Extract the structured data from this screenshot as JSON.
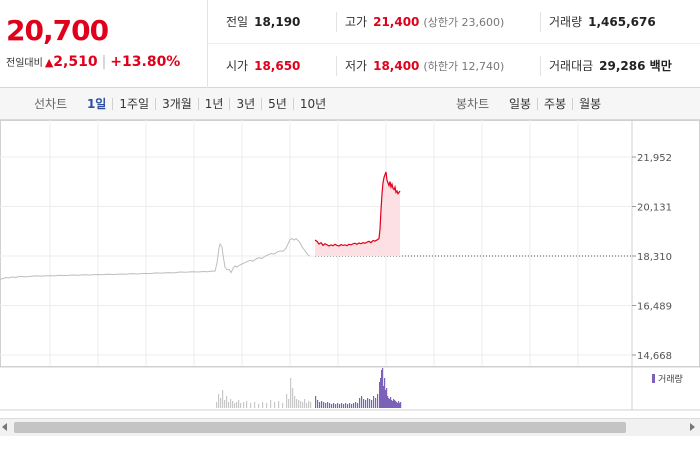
{
  "summary": {
    "price": "20,700",
    "change_label": "전일대비",
    "change_symbol": "▲",
    "change_amount": "2,510",
    "change_percent": "+13.80%",
    "row1": {
      "prev_close_label": "전일",
      "prev_close": "18,190",
      "high_label": "고가",
      "high": "21,400",
      "upper_limit_label": "(상한가 23,600)",
      "volume_label": "거래량",
      "volume": "1,465,676"
    },
    "row2": {
      "open_label": "시가",
      "open": "18,650",
      "low_label": "저가",
      "low": "18,400",
      "lower_limit_label": "(하한가 12,740)",
      "turnover_label": "거래대금",
      "turnover": "29,286 백만"
    }
  },
  "toolbar": {
    "line_chart_label": "선차트",
    "periods": [
      "1일",
      "1주일",
      "3개월",
      "1년",
      "3년",
      "5년",
      "10년"
    ],
    "active_period": "1일",
    "candle_chart_label": "봉차트",
    "candles": [
      "일봉",
      "주봉",
      "월봉"
    ]
  },
  "chart_data": {
    "type": "line",
    "y_ticks": [
      "21,952",
      "20,131",
      "18,310",
      "16,489",
      "14,668"
    ],
    "ylim": [
      14668,
      21952
    ],
    "previous_close": 18190,
    "volume_legend": "거래량",
    "colors": {
      "up": "#e1001b",
      "pre_market": "#bdbdbd",
      "volume_pre": "#c8c8c8",
      "volume_main": "#7b61b8"
    },
    "pre_market": [
      [
        0,
        17450
      ],
      [
        3,
        17480
      ],
      [
        6,
        17520
      ],
      [
        9,
        17500
      ],
      [
        12,
        17540
      ],
      [
        15,
        17520
      ],
      [
        20,
        17560
      ],
      [
        25,
        17540
      ],
      [
        30,
        17560
      ],
      [
        36,
        17580
      ],
      [
        42,
        17570
      ],
      [
        48,
        17590
      ],
      [
        54,
        17580
      ],
      [
        60,
        17600
      ],
      [
        66,
        17590
      ],
      [
        72,
        17610
      ],
      [
        78,
        17600
      ],
      [
        84,
        17620
      ],
      [
        90,
        17610
      ],
      [
        96,
        17630
      ],
      [
        102,
        17620
      ],
      [
        108,
        17640
      ],
      [
        114,
        17630
      ],
      [
        120,
        17650
      ],
      [
        126,
        17640
      ],
      [
        132,
        17660
      ],
      [
        138,
        17650
      ],
      [
        144,
        17670
      ],
      [
        150,
        17660
      ],
      [
        156,
        17690
      ],
      [
        162,
        17680
      ],
      [
        168,
        17700
      ],
      [
        174,
        17690
      ],
      [
        180,
        17720
      ],
      [
        186,
        17710
      ],
      [
        192,
        17730
      ],
      [
        198,
        17720
      ],
      [
        204,
        17740
      ],
      [
        208,
        17730
      ],
      [
        212,
        17760
      ],
      [
        215,
        17750
      ],
      [
        217,
        18050
      ],
      [
        219,
        18600
      ],
      [
        220,
        18750
      ],
      [
        222,
        18650
      ],
      [
        223,
        18350
      ],
      [
        225,
        17900
      ],
      [
        227,
        17800
      ],
      [
        229,
        17820
      ],
      [
        231,
        17700
      ],
      [
        233,
        17850
      ],
      [
        235,
        17950
      ],
      [
        237,
        17900
      ],
      [
        239,
        17960
      ],
      [
        241,
        18000
      ],
      [
        244,
        18050
      ],
      [
        247,
        18100
      ],
      [
        250,
        18150
      ],
      [
        253,
        18120
      ],
      [
        256,
        18200
      ],
      [
        259,
        18250
      ],
      [
        262,
        18220
      ],
      [
        265,
        18300
      ],
      [
        268,
        18350
      ],
      [
        271,
        18400
      ],
      [
        274,
        18380
      ],
      [
        277,
        18450
      ],
      [
        280,
        18500
      ],
      [
        283,
        18480
      ],
      [
        286,
        18600
      ],
      [
        288,
        18750
      ],
      [
        290,
        18920
      ],
      [
        292,
        18950
      ],
      [
        294,
        18900
      ],
      [
        296,
        18950
      ],
      [
        298,
        18880
      ],
      [
        300,
        18800
      ],
      [
        302,
        18650
      ],
      [
        304,
        18550
      ],
      [
        306,
        18450
      ],
      [
        308,
        18350
      ],
      [
        310,
        18300
      ]
    ],
    "intraday": [
      [
        315,
        18900
      ],
      [
        317,
        18850
      ],
      [
        319,
        18750
      ],
      [
        321,
        18800
      ],
      [
        323,
        18700
      ],
      [
        325,
        18760
      ],
      [
        327,
        18720
      ],
      [
        329,
        18680
      ],
      [
        331,
        18720
      ],
      [
        333,
        18690
      ],
      [
        335,
        18740
      ],
      [
        337,
        18700
      ],
      [
        339,
        18680
      ],
      [
        341,
        18730
      ],
      [
        343,
        18700
      ],
      [
        345,
        18720
      ],
      [
        347,
        18690
      ],
      [
        349,
        18740
      ],
      [
        351,
        18720
      ],
      [
        353,
        18760
      ],
      [
        355,
        18780
      ],
      [
        357,
        18740
      ],
      [
        359,
        18790
      ],
      [
        361,
        18760
      ],
      [
        363,
        18800
      ],
      [
        365,
        18780
      ],
      [
        367,
        18820
      ],
      [
        369,
        18850
      ],
      [
        371,
        18800
      ],
      [
        373,
        18880
      ],
      [
        375,
        18860
      ],
      [
        377,
        18900
      ],
      [
        379,
        18950
      ],
      [
        380,
        19300
      ],
      [
        381,
        20000
      ],
      [
        382,
        20600
      ],
      [
        383,
        21000
      ],
      [
        384,
        21200
      ],
      [
        385,
        21300
      ],
      [
        386,
        21400
      ],
      [
        387,
        21100
      ],
      [
        388,
        21000
      ],
      [
        389,
        20900
      ],
      [
        390,
        21050
      ],
      [
        391,
        20850
      ],
      [
        392,
        20950
      ],
      [
        393,
        20800
      ],
      [
        394,
        20750
      ],
      [
        395,
        20850
      ],
      [
        396,
        20650
      ],
      [
        397,
        20700
      ],
      [
        398,
        20600
      ],
      [
        399,
        20650
      ],
      [
        400,
        20700
      ]
    ],
    "volume_pre": [
      [
        216,
        6
      ],
      [
        218,
        14
      ],
      [
        220,
        10
      ],
      [
        222,
        18
      ],
      [
        224,
        8
      ],
      [
        226,
        12
      ],
      [
        228,
        6
      ],
      [
        230,
        9
      ],
      [
        232,
        7
      ],
      [
        234,
        5
      ],
      [
        236,
        6
      ],
      [
        238,
        8
      ],
      [
        240,
        5
      ],
      [
        243,
        6
      ],
      [
        246,
        7
      ],
      [
        250,
        5
      ],
      [
        254,
        6
      ],
      [
        258,
        4
      ],
      [
        262,
        6
      ],
      [
        266,
        5
      ],
      [
        270,
        8
      ],
      [
        274,
        6
      ],
      [
        278,
        7
      ],
      [
        282,
        5
      ],
      [
        286,
        14
      ],
      [
        288,
        9
      ],
      [
        290,
        30
      ],
      [
        292,
        20
      ],
      [
        294,
        12
      ],
      [
        296,
        9
      ],
      [
        298,
        8
      ],
      [
        300,
        7
      ],
      [
        302,
        6
      ],
      [
        304,
        9
      ],
      [
        306,
        5
      ],
      [
        308,
        7
      ],
      [
        310,
        6
      ]
    ],
    "volume_main": [
      [
        315,
        12
      ],
      [
        317,
        8
      ],
      [
        319,
        6
      ],
      [
        321,
        7
      ],
      [
        323,
        6
      ],
      [
        325,
        5
      ],
      [
        327,
        6
      ],
      [
        329,
        5
      ],
      [
        331,
        4
      ],
      [
        333,
        5
      ],
      [
        335,
        4
      ],
      [
        337,
        5
      ],
      [
        339,
        4
      ],
      [
        341,
        5
      ],
      [
        343,
        4
      ],
      [
        345,
        5
      ],
      [
        347,
        4
      ],
      [
        349,
        5
      ],
      [
        351,
        4
      ],
      [
        353,
        5
      ],
      [
        355,
        6
      ],
      [
        357,
        5
      ],
      [
        359,
        10
      ],
      [
        361,
        12
      ],
      [
        363,
        9
      ],
      [
        365,
        8
      ],
      [
        367,
        10
      ],
      [
        369,
        9
      ],
      [
        371,
        8
      ],
      [
        373,
        12
      ],
      [
        375,
        10
      ],
      [
        377,
        14
      ],
      [
        379,
        26
      ],
      [
        380,
        30
      ],
      [
        381,
        38
      ],
      [
        382,
        40
      ],
      [
        383,
        22
      ],
      [
        384,
        30
      ],
      [
        385,
        18
      ],
      [
        386,
        20
      ],
      [
        387,
        12
      ],
      [
        388,
        10
      ],
      [
        389,
        9
      ],
      [
        390,
        11
      ],
      [
        391,
        8
      ],
      [
        392,
        7
      ],
      [
        393,
        9
      ],
      [
        394,
        8
      ],
      [
        395,
        7
      ],
      [
        396,
        6
      ],
      [
        397,
        5
      ],
      [
        398,
        7
      ],
      [
        399,
        5
      ],
      [
        400,
        6
      ]
    ]
  }
}
